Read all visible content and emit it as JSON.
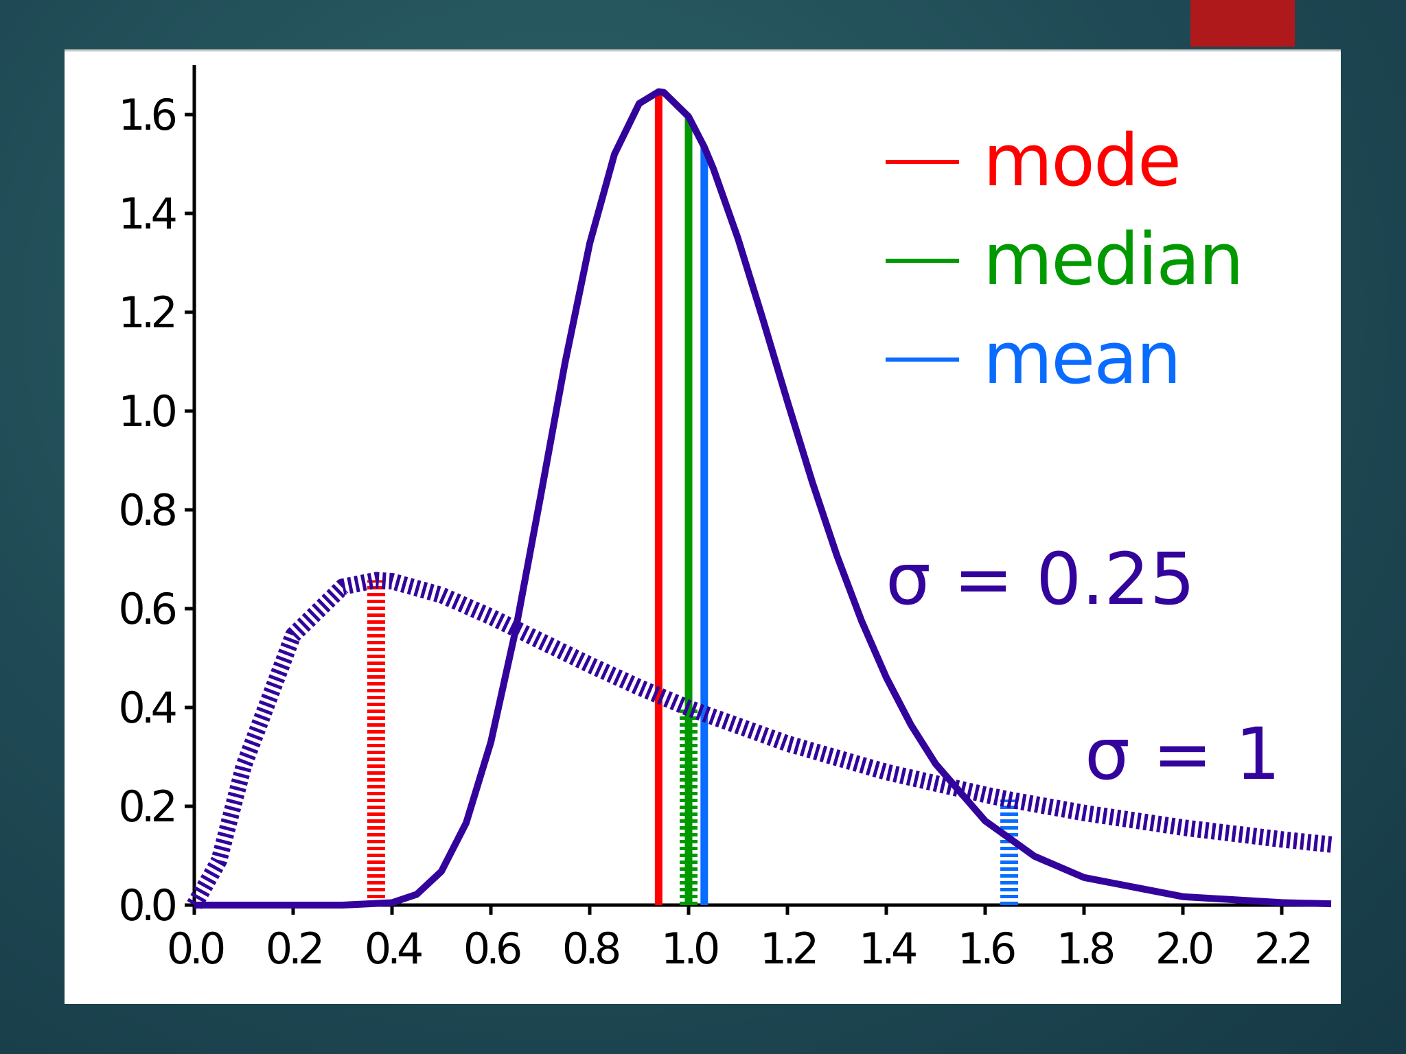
{
  "chart_data": {
    "type": "line",
    "xlim": [
      0,
      2.3
    ],
    "ylim": [
      0,
      1.7
    ],
    "xticks": [
      {
        "value": 0,
        "label": "0.0"
      },
      {
        "value": 0.2,
        "label": "0.2"
      },
      {
        "value": 0.4,
        "label": "0.4"
      },
      {
        "value": 0.6,
        "label": "0.6"
      },
      {
        "value": 0.8,
        "label": "0.8"
      },
      {
        "value": 1,
        "label": "1.0"
      },
      {
        "value": 1.2,
        "label": "1.2"
      },
      {
        "value": 1.4,
        "label": "1.4"
      },
      {
        "value": 1.6,
        "label": "1.6"
      },
      {
        "value": 1.8,
        "label": "1.8"
      },
      {
        "value": 2,
        "label": "2.0"
      },
      {
        "value": 2.2,
        "label": "2.2"
      }
    ],
    "yticks": [
      {
        "value": 0,
        "label": "0.0"
      },
      {
        "value": 0.2,
        "label": "0.2"
      },
      {
        "value": 0.4,
        "label": "0.4"
      },
      {
        "value": 0.6,
        "label": "0.6"
      },
      {
        "value": 0.8,
        "label": "0.8"
      },
      {
        "value": 1,
        "label": "1.0"
      },
      {
        "value": 1.2,
        "label": "1.2"
      },
      {
        "value": 1.4,
        "label": "1.4"
      },
      {
        "value": 1.6,
        "label": "1.6"
      }
    ],
    "stats": [
      {
        "name": "mode",
        "color": "#ff0000"
      },
      {
        "name": "median",
        "color": "#009900"
      },
      {
        "name": "mean",
        "color": "#0a6cff"
      }
    ],
    "series": [
      {
        "name": "σ = 0.25",
        "color": "#33049c",
        "style": "solid",
        "x": [
          0,
          0.3,
          0.4,
          0.45,
          0.5,
          0.55,
          0.6,
          0.65,
          0.7,
          0.75,
          0.8,
          0.85,
          0.9,
          0.9394,
          0.95,
          1,
          1.0317,
          1.05,
          1.1,
          1.15,
          1.2,
          1.25,
          1.3,
          1.35,
          1.4,
          1.45,
          1.5,
          1.6,
          1.7,
          1.8,
          2,
          2.2,
          2.3
        ],
        "values": [
          0,
          0,
          0.0048,
          0.0216,
          0.0683,
          0.1663,
          0.3298,
          0.5563,
          0.8239,
          1.0972,
          1.3393,
          1.5197,
          1.6224,
          1.6464,
          1.6448,
          1.5958,
          1.5347,
          1.491,
          1.349,
          1.1868,
          1.0193,
          0.8571,
          0.7077,
          0.5751,
          0.4607,
          0.3646,
          0.2856,
          0.1704,
          0.0987,
          0.0559,
          0.0171,
          0.005,
          0.0027
        ],
        "stats_x": [
          0.9394,
          1,
          1.0317
        ],
        "stats_y": [
          1.6464,
          1.5958,
          1.5347
        ]
      },
      {
        "name": "σ = 1",
        "color": "#33049c",
        "style": "dotted",
        "x": [
          0,
          0.05,
          0.1,
          0.2,
          0.3,
          0.3679,
          0.4,
          0.5,
          0.6,
          0.7,
          0.8,
          0.9,
          1,
          1.2,
          1.4,
          1.6,
          1.6487,
          1.8,
          2,
          2.2,
          2.3
        ],
        "values": [
          0,
          0.0898,
          0.2815,
          0.5463,
          0.6442,
          0.6577,
          0.6555,
          0.6275,
          0.5836,
          0.5348,
          0.4864,
          0.4408,
          0.3989,
          0.327,
          0.2693,
          0.2233,
          0.2135,
          0.1865,
          0.1569,
          0.1329,
          0.1226
        ],
        "stats_x": [
          0.3679,
          1,
          1.6487
        ],
        "stats_y": [
          0.6577,
          0.3989,
          0.2135
        ]
      }
    ]
  }
}
